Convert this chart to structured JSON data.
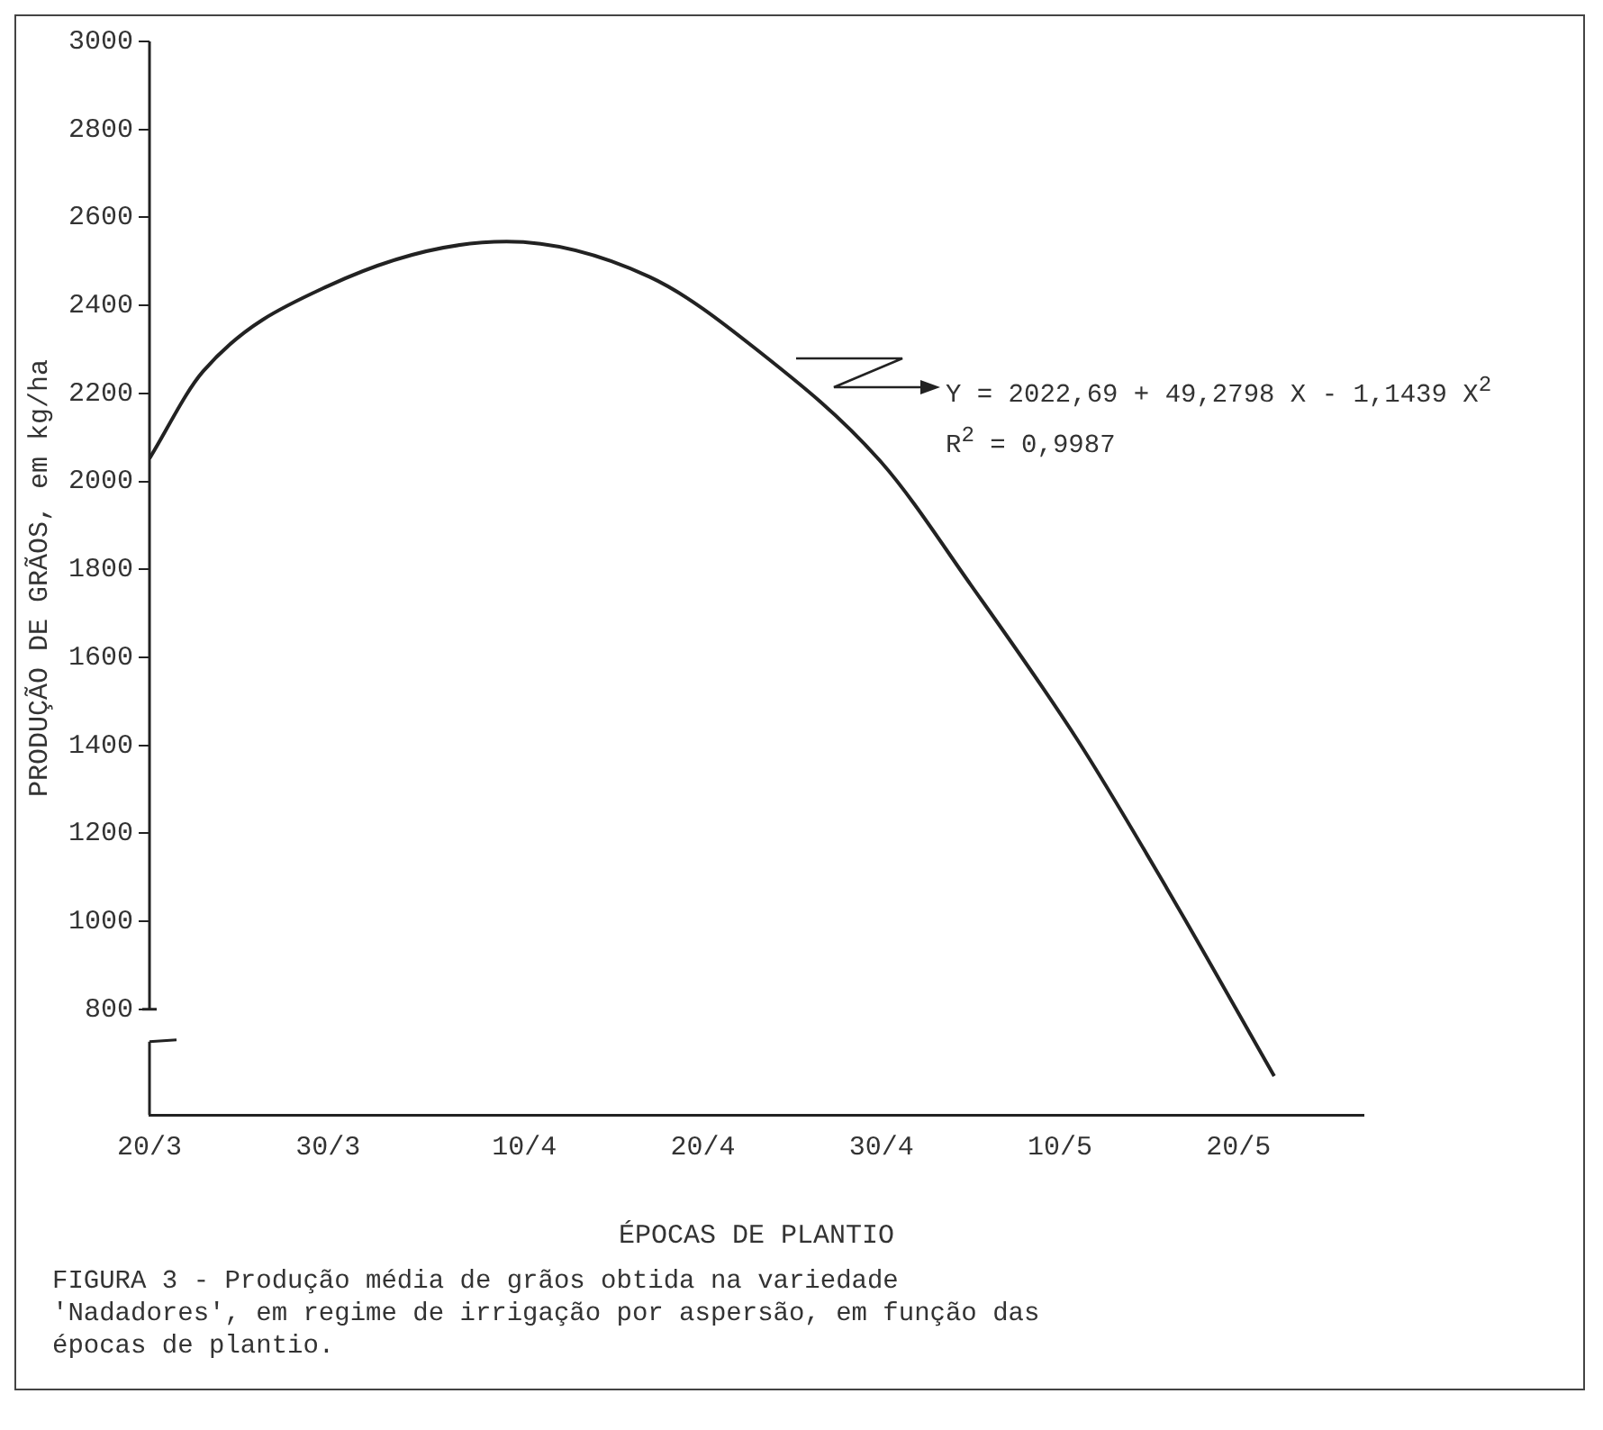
{
  "chart_data": {
    "type": "line",
    "xlabel": "ÉPOCAS DE PLANTIO",
    "ylabel": "PRODUÇÃO DE GRÃOS, em kg/ha",
    "x": [
      "--03-20",
      "--03-23",
      "--03-30",
      "--04-09",
      "--04-17",
      "--04-23",
      "--04-30",
      "--05-05",
      "--05-11",
      "--05-16",
      "--05-22"
    ],
    "series": [
      {
        "color": "#222222",
        "values": [
          2052,
          2250,
          2444,
          2545,
          2465,
          2300,
          2043,
          1765,
          1411,
          1074,
          648
        ]
      }
    ],
    "xlim": [
      "--03-20",
      "--05-27"
    ],
    "xticks": [
      {
        "value": "--03-20",
        "label": "20/3"
      },
      {
        "value": "--03-30",
        "label": "30/3"
      },
      {
        "value": "--04-10",
        "label": "10/4"
      },
      {
        "value": "--04-20",
        "label": "20/4"
      },
      {
        "value": "--04-30",
        "label": "30/4"
      },
      {
        "value": "--05-10",
        "label": "10/5"
      },
      {
        "value": "--05-20",
        "label": "20/5"
      }
    ],
    "ylim": [
      560,
      3000
    ],
    "yticks": [
      800,
      1000,
      1200,
      1400,
      1600,
      1800,
      2000,
      2200,
      2400,
      2600,
      2800,
      3000
    ],
    "annotations": [
      "Y = 2022,69 + 49,2798 X - 1,1439 X$^{2}$",
      "R$^{2}$ = 0,9987",
      "FIGURA 3 - Produção média de grãos obtida na variedade 'Nadadores', em regime de irrigação por aspersão, em função das épocas de plantio."
    ]
  }
}
